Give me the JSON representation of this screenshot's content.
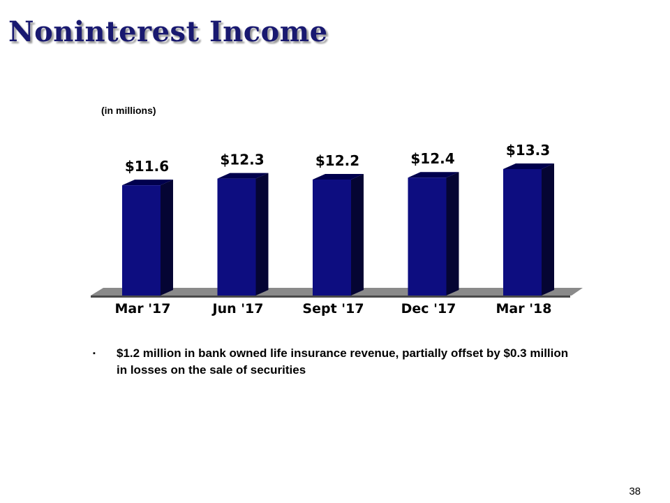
{
  "slide": {
    "title": "Noninterest Income",
    "units_label": "(in millions)",
    "page_number": "38"
  },
  "bullets": [
    {
      "marker": "▪",
      "text": "$1.2 million in bank owned life insurance revenue, partially offset by $0.3 million in losses on the sale of securities"
    }
  ],
  "colors": {
    "title": "#191970",
    "bar_front": "#0d0d80",
    "bar_side": "#050533",
    "bar_top": "#00004d",
    "floor": "#4a4a4a"
  },
  "chart_data": {
    "type": "bar",
    "categories": [
      "Mar '17",
      "Jun '17",
      "Sept '17",
      "Dec '17",
      "Mar '18"
    ],
    "values": [
      11.6,
      12.3,
      12.2,
      12.4,
      13.3
    ],
    "value_labels": [
      "$11.6",
      "$12.3",
      "$12.2",
      "$12.4",
      "$13.3"
    ],
    "title": "",
    "xlabel": "",
    "ylabel": "",
    "grid": false,
    "legend": "none",
    "three_d": true
  }
}
